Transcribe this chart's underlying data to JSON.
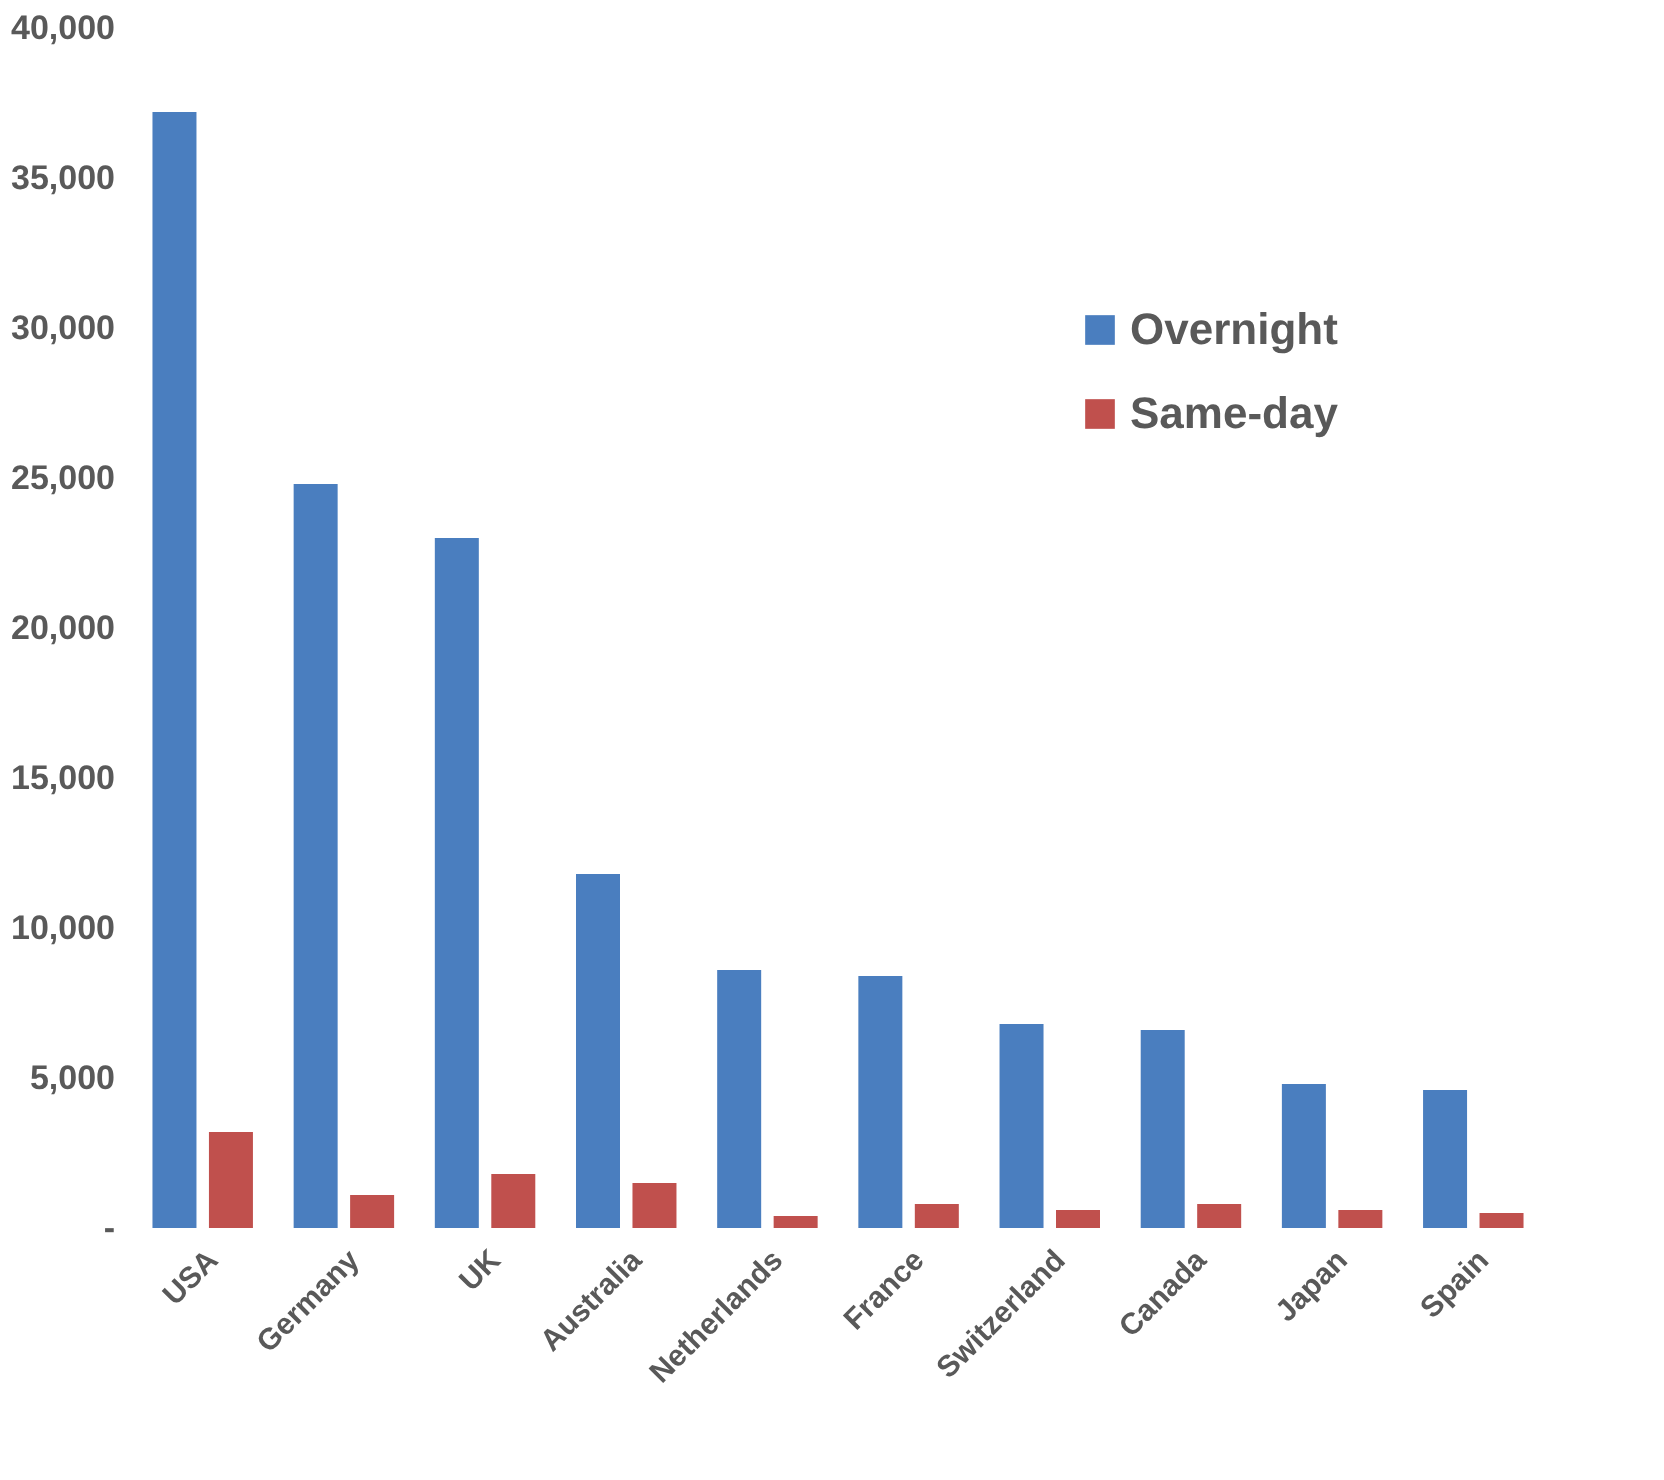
{
  "chart_data": {
    "type": "bar",
    "categories": [
      "USA",
      "Germany",
      "UK",
      "Australia",
      "Netherlands",
      "France",
      "Switzerland",
      "Canada",
      "Japan",
      "Spain"
    ],
    "series": [
      {
        "name": "Overnight",
        "color": "#4a7ebf",
        "values": [
          37200,
          24800,
          23000,
          11800,
          8600,
          8400,
          6800,
          6600,
          4800,
          4600
        ]
      },
      {
        "name": "Same-day",
        "color": "#c0504d",
        "values": [
          3200,
          1100,
          1800,
          1500,
          400,
          800,
          600,
          800,
          600,
          500
        ]
      }
    ],
    "ylim": [
      0,
      40000
    ],
    "yticks": [
      {
        "value": 0,
        "label": "-"
      },
      {
        "value": 5000,
        "label": "5,000"
      },
      {
        "value": 10000,
        "label": "10,000"
      },
      {
        "value": 15000,
        "label": "15,000"
      },
      {
        "value": 20000,
        "label": "20,000"
      },
      {
        "value": 25000,
        "label": "25,000"
      },
      {
        "value": 30000,
        "label": "30,000"
      },
      {
        "value": 35000,
        "label": "35,000"
      },
      {
        "value": 40000,
        "label": "40,000"
      }
    ],
    "grid": false,
    "legend": "top right"
  }
}
